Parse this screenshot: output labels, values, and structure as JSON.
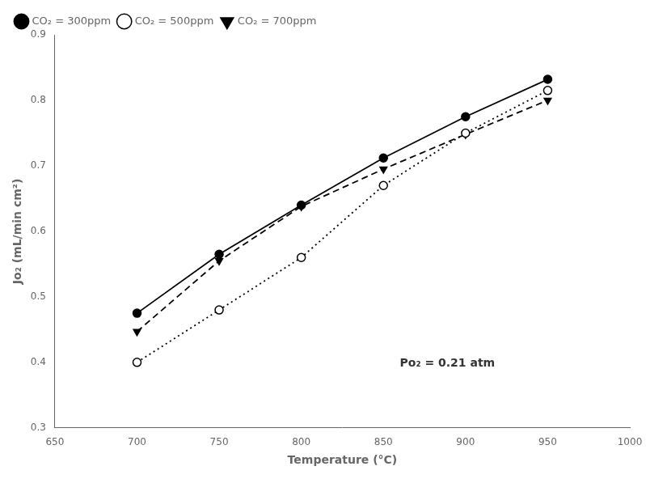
{
  "chart_data": {
    "type": "line",
    "x_label": "Temperature (°C)",
    "y_label": "Jo₂ (mL/min cm²)",
    "annotation": "Po₂ = 0.21 atm",
    "x": [
      700,
      750,
      800,
      850,
      900,
      950
    ],
    "series": [
      {
        "name": "CO₂ = 300ppm",
        "color": "black",
        "line_style": "solid",
        "marker": "circle",
        "values": [
          0.475,
          0.565,
          0.64,
          0.712,
          0.775,
          0.832
        ]
      },
      {
        "name": "CO₂ = 500ppm",
        "color": "black",
        "line_style": "dotted",
        "marker": "open_circle",
        "values": [
          0.4,
          0.48,
          0.56,
          0.67,
          0.75,
          0.815
        ]
      },
      {
        "name": "CO₂ = 700ppm",
        "color": "black",
        "line_style": "dashed",
        "marker": "triangle_down",
        "values": [
          0.447,
          0.555,
          0.638,
          0.695,
          0.748,
          0.8
        ]
      }
    ],
    "xlim": [
      650,
      1000
    ],
    "ylim": [
      0.3,
      0.9
    ],
    "xticks": [
      650,
      700,
      750,
      800,
      850,
      900,
      950,
      1000
    ],
    "yticks": [
      0.3,
      0.4,
      0.5,
      0.6,
      0.7,
      0.8,
      0.9
    ],
    "grid": false,
    "legend": "upper left"
  }
}
